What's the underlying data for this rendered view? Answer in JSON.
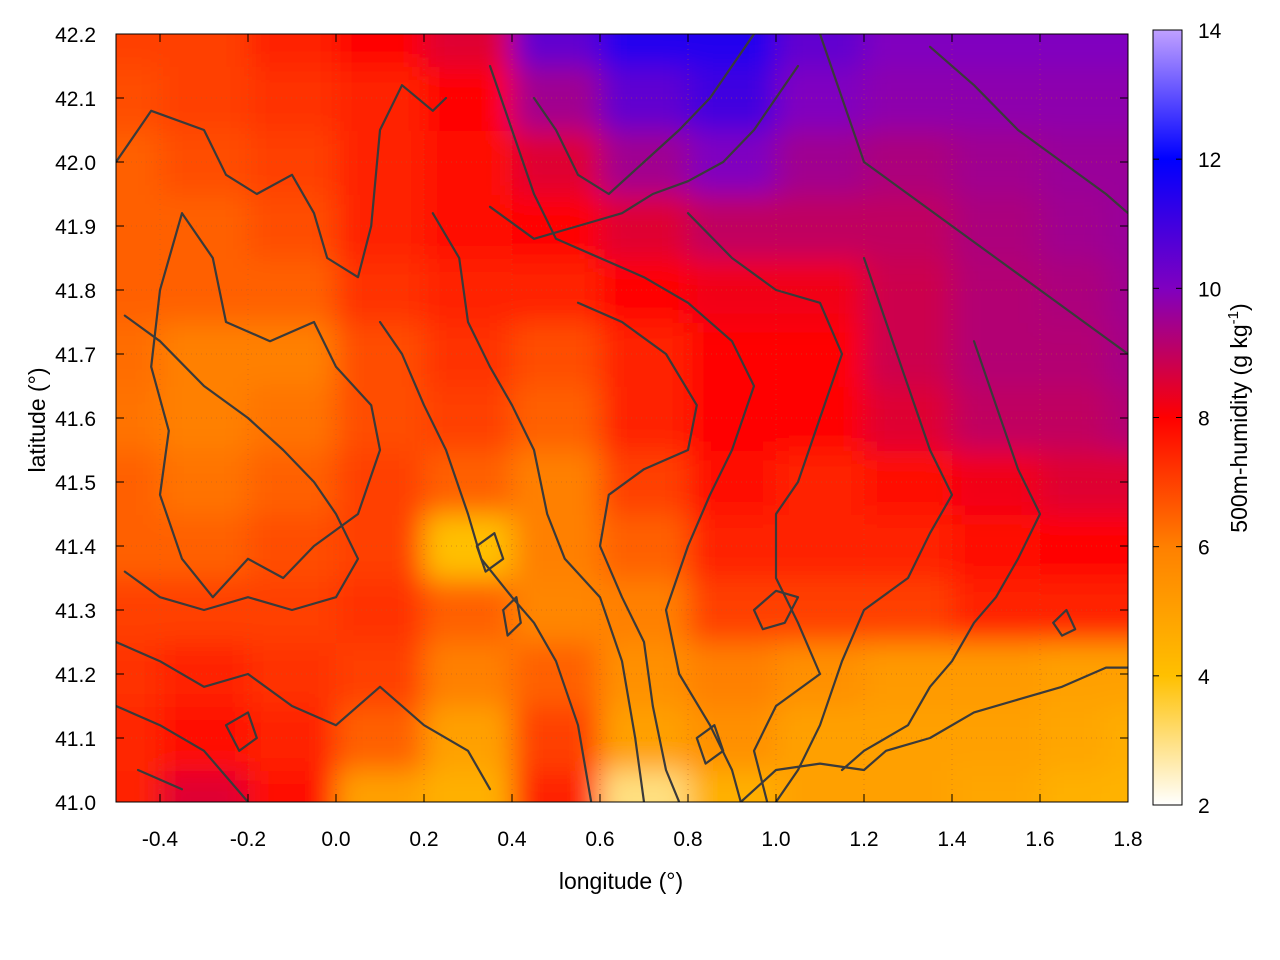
{
  "chart_data": {
    "type": "heatmap",
    "title": "",
    "xlabel": "longitude (°)",
    "ylabel": "latitude (°)",
    "colorbar_label_main": "500m-humidity (g kg",
    "colorbar_label_exp": "-1",
    "colorbar_label_close": ")",
    "xlim": [
      -0.5,
      1.8
    ],
    "ylim": [
      41.0,
      42.2
    ],
    "zlim": [
      2,
      14
    ],
    "x_ticks": [
      -0.4,
      -0.2,
      0.0,
      0.2,
      0.4,
      0.6,
      0.8,
      1.0,
      1.2,
      1.4,
      1.6,
      1.8
    ],
    "x_tick_labels": [
      "-0.4",
      "-0.2",
      "0.0",
      "0.2",
      "0.4",
      "0.6",
      "0.8",
      "1.0",
      "1.2",
      "1.4",
      "1.6",
      "1.8"
    ],
    "y_ticks": [
      41.0,
      41.1,
      41.2,
      41.3,
      41.4,
      41.5,
      41.6,
      41.7,
      41.8,
      41.9,
      42.0,
      42.1,
      42.2
    ],
    "y_tick_labels": [
      "41.0",
      "41.1",
      "41.2",
      "41.3",
      "41.4",
      "41.5",
      "41.6",
      "41.7",
      "41.8",
      "41.9",
      "42.0",
      "42.1",
      "42.2"
    ],
    "z_ticks": [
      2,
      4,
      6,
      8,
      10,
      12,
      14
    ],
    "z_tick_labels": [
      "2",
      "4",
      "6",
      "8",
      "10",
      "12",
      "14"
    ],
    "colormap": [
      "#ffffff",
      "#ffc000",
      "#ff8000",
      "#ff0000",
      "#8000c0",
      "#0000ff",
      "#c0a0ff"
    ],
    "contour_color": "#3a3a3a",
    "grid": true,
    "humidity_grid": {
      "x": [
        -0.5,
        -0.3,
        -0.1,
        0.1,
        0.3,
        0.5,
        0.7,
        0.9,
        1.1,
        1.3,
        1.5,
        1.7,
        1.8
      ],
      "y": [
        41.0,
        41.1,
        41.2,
        41.3,
        41.4,
        41.5,
        41.6,
        41.7,
        41.8,
        41.9,
        42.0,
        42.1,
        42.2
      ],
      "z": [
        [
          7.5,
          8.5,
          7.8,
          5.0,
          4.5,
          7.5,
          3.0,
          4.5,
          5.0,
          5.0,
          4.8,
          4.5,
          4.4
        ],
        [
          7.4,
          7.8,
          7.5,
          6.5,
          5.0,
          7.0,
          5.0,
          5.5,
          5.0,
          5.0,
          5.0,
          4.8,
          4.6
        ],
        [
          7.2,
          7.5,
          7.2,
          7.0,
          6.0,
          6.5,
          5.5,
          6.0,
          5.5,
          5.2,
          5.2,
          5.0,
          5.0
        ],
        [
          7.0,
          7.0,
          7.0,
          7.2,
          6.5,
          5.8,
          6.0,
          7.0,
          7.0,
          7.0,
          7.5,
          7.5,
          7.5
        ],
        [
          6.5,
          6.5,
          6.8,
          7.0,
          4.0,
          6.0,
          6.5,
          7.5,
          7.5,
          7.5,
          7.8,
          8.0,
          8.0
        ],
        [
          6.5,
          6.2,
          6.5,
          7.0,
          6.5,
          6.0,
          7.0,
          7.8,
          7.5,
          7.8,
          8.2,
          8.5,
          8.5
        ],
        [
          6.2,
          6.0,
          6.2,
          6.8,
          7.0,
          6.5,
          7.5,
          8.0,
          8.0,
          8.5,
          9.0,
          9.0,
          9.2
        ],
        [
          6.3,
          6.0,
          6.0,
          6.8,
          7.2,
          6.8,
          7.5,
          8.0,
          8.0,
          8.8,
          9.2,
          9.2,
          9.4
        ],
        [
          6.5,
          6.5,
          6.5,
          7.2,
          7.5,
          7.5,
          8.0,
          8.2,
          8.2,
          8.8,
          9.2,
          9.3,
          9.5
        ],
        [
          6.5,
          6.5,
          6.8,
          7.5,
          7.8,
          8.0,
          8.5,
          9.0,
          9.0,
          9.0,
          9.3,
          9.5,
          9.6
        ],
        [
          6.5,
          6.8,
          7.0,
          7.5,
          7.8,
          8.5,
          9.5,
          10.0,
          9.5,
          9.3,
          9.5,
          9.6,
          9.6
        ],
        [
          6.8,
          7.0,
          7.2,
          7.5,
          8.0,
          9.5,
          10.5,
          11.0,
          10.0,
          9.8,
          9.8,
          9.8,
          9.8
        ],
        [
          7.0,
          7.0,
          7.5,
          8.0,
          8.5,
          10.5,
          11.5,
          11.5,
          10.5,
          10.0,
          10.0,
          10.0,
          10.0
        ]
      ]
    },
    "contour_lines": [
      [
        [
          -0.5,
          42.0
        ],
        [
          -0.42,
          42.08
        ],
        [
          -0.3,
          42.05
        ],
        [
          -0.25,
          41.98
        ],
        [
          -0.18,
          41.95
        ],
        [
          -0.1,
          41.98
        ],
        [
          -0.05,
          41.92
        ],
        [
          -0.02,
          41.85
        ],
        [
          0.05,
          41.82
        ],
        [
          0.08,
          41.9
        ],
        [
          0.1,
          42.05
        ],
        [
          0.15,
          42.12
        ],
        [
          0.22,
          42.08
        ],
        [
          0.25,
          42.1
        ]
      ],
      [
        [
          -0.35,
          41.92
        ],
        [
          -0.28,
          41.85
        ],
        [
          -0.25,
          41.75
        ],
        [
          -0.15,
          41.72
        ],
        [
          -0.05,
          41.75
        ],
        [
          0.0,
          41.68
        ],
        [
          0.08,
          41.62
        ],
        [
          0.1,
          41.55
        ],
        [
          0.05,
          41.45
        ],
        [
          -0.05,
          41.4
        ],
        [
          -0.12,
          41.35
        ],
        [
          -0.2,
          41.38
        ],
        [
          -0.28,
          41.32
        ],
        [
          -0.35,
          41.38
        ],
        [
          -0.4,
          41.48
        ],
        [
          -0.38,
          41.58
        ],
        [
          -0.42,
          41.68
        ],
        [
          -0.4,
          41.8
        ],
        [
          -0.35,
          41.92
        ]
      ],
      [
        [
          -0.48,
          41.76
        ],
        [
          -0.4,
          41.72
        ],
        [
          -0.3,
          41.65
        ],
        [
          -0.2,
          41.6
        ],
        [
          -0.12,
          41.55
        ],
        [
          -0.05,
          41.5
        ],
        [
          0.0,
          41.45
        ],
        [
          0.05,
          41.38
        ],
        [
          0.0,
          41.32
        ],
        [
          -0.1,
          41.3
        ],
        [
          -0.2,
          41.32
        ],
        [
          -0.3,
          41.3
        ],
        [
          -0.4,
          41.32
        ],
        [
          -0.48,
          41.36
        ]
      ],
      [
        [
          -0.5,
          41.25
        ],
        [
          -0.4,
          41.22
        ],
        [
          -0.3,
          41.18
        ],
        [
          -0.2,
          41.2
        ],
        [
          -0.1,
          41.15
        ],
        [
          0.0,
          41.12
        ],
        [
          0.1,
          41.18
        ],
        [
          0.2,
          41.12
        ],
        [
          0.3,
          41.08
        ],
        [
          0.35,
          41.02
        ]
      ],
      [
        [
          -0.5,
          41.15
        ],
        [
          -0.4,
          41.12
        ],
        [
          -0.3,
          41.08
        ],
        [
          -0.2,
          41.0
        ]
      ],
      [
        [
          -0.45,
          41.05
        ],
        [
          -0.35,
          41.02
        ]
      ],
      [
        [
          0.1,
          41.75
        ],
        [
          0.15,
          41.7
        ],
        [
          0.2,
          41.62
        ],
        [
          0.25,
          41.55
        ],
        [
          0.3,
          41.45
        ],
        [
          0.33,
          41.38
        ],
        [
          0.4,
          41.32
        ],
        [
          0.45,
          41.28
        ],
        [
          0.5,
          41.22
        ],
        [
          0.55,
          41.12
        ],
        [
          0.58,
          41.0
        ]
      ],
      [
        [
          0.22,
          41.92
        ],
        [
          0.28,
          41.85
        ],
        [
          0.3,
          41.75
        ],
        [
          0.35,
          41.68
        ],
        [
          0.4,
          41.62
        ],
        [
          0.45,
          41.55
        ],
        [
          0.48,
          41.45
        ],
        [
          0.52,
          41.38
        ],
        [
          0.6,
          41.32
        ],
        [
          0.65,
          41.22
        ],
        [
          0.68,
          41.1
        ],
        [
          0.7,
          41.0
        ]
      ],
      [
        [
          0.35,
          42.15
        ],
        [
          0.4,
          42.05
        ],
        [
          0.45,
          41.95
        ],
        [
          0.5,
          41.88
        ],
        [
          0.6,
          41.85
        ],
        [
          0.7,
          41.82
        ],
        [
          0.8,
          41.78
        ],
        [
          0.9,
          41.72
        ],
        [
          0.95,
          41.65
        ],
        [
          0.9,
          41.55
        ],
        [
          0.85,
          41.48
        ],
        [
          0.8,
          41.4
        ],
        [
          0.75,
          41.3
        ],
        [
          0.78,
          41.2
        ],
        [
          0.85,
          41.12
        ],
        [
          0.9,
          41.05
        ],
        [
          0.92,
          41.0
        ]
      ],
      [
        [
          0.55,
          41.78
        ],
        [
          0.65,
          41.75
        ],
        [
          0.75,
          41.7
        ],
        [
          0.82,
          41.62
        ],
        [
          0.8,
          41.55
        ],
        [
          0.7,
          41.52
        ],
        [
          0.62,
          41.48
        ],
        [
          0.6,
          41.4
        ],
        [
          0.65,
          41.32
        ],
        [
          0.7,
          41.25
        ],
        [
          0.72,
          41.15
        ],
        [
          0.75,
          41.05
        ],
        [
          0.78,
          41.0
        ]
      ],
      [
        [
          0.8,
          41.92
        ],
        [
          0.9,
          41.85
        ],
        [
          1.0,
          41.8
        ],
        [
          1.1,
          41.78
        ],
        [
          1.15,
          41.7
        ],
        [
          1.1,
          41.6
        ],
        [
          1.05,
          41.5
        ],
        [
          1.0,
          41.45
        ],
        [
          1.0,
          41.35
        ],
        [
          1.05,
          41.28
        ],
        [
          1.1,
          41.2
        ],
        [
          1.0,
          41.15
        ],
        [
          0.95,
          41.08
        ],
        [
          0.98,
          41.0
        ]
      ],
      [
        [
          1.2,
          41.85
        ],
        [
          1.25,
          41.75
        ],
        [
          1.3,
          41.65
        ],
        [
          1.35,
          41.55
        ],
        [
          1.4,
          41.48
        ],
        [
          1.35,
          41.42
        ],
        [
          1.3,
          41.35
        ],
        [
          1.2,
          41.3
        ],
        [
          1.15,
          41.22
        ],
        [
          1.1,
          41.12
        ],
        [
          1.05,
          41.05
        ],
        [
          1.0,
          41.0
        ]
      ],
      [
        [
          1.45,
          41.72
        ],
        [
          1.5,
          41.62
        ],
        [
          1.55,
          41.52
        ],
        [
          1.6,
          41.45
        ],
        [
          1.55,
          41.38
        ],
        [
          1.5,
          41.32
        ],
        [
          1.45,
          41.28
        ],
        [
          1.4,
          41.22
        ],
        [
          1.35,
          41.18
        ],
        [
          1.3,
          41.12
        ],
        [
          1.2,
          41.08
        ],
        [
          1.15,
          41.05
        ]
      ],
      [
        [
          0.92,
          41.0
        ],
        [
          1.0,
          41.05
        ],
        [
          1.1,
          41.06
        ],
        [
          1.2,
          41.05
        ],
        [
          1.25,
          41.08
        ],
        [
          1.35,
          41.1
        ],
        [
          1.45,
          41.14
        ],
        [
          1.55,
          41.16
        ],
        [
          1.65,
          41.18
        ],
        [
          1.75,
          41.21
        ],
        [
          1.8,
          41.21
        ]
      ],
      [
        [
          0.35,
          41.93
        ],
        [
          0.45,
          41.88
        ],
        [
          0.55,
          41.9
        ],
        [
          0.65,
          41.92
        ],
        [
          0.72,
          41.95
        ],
        [
          0.8,
          41.97
        ],
        [
          0.88,
          42.0
        ],
        [
          0.95,
          42.05
        ],
        [
          1.0,
          42.1
        ],
        [
          1.05,
          42.15
        ]
      ],
      [
        [
          0.45,
          42.1
        ],
        [
          0.5,
          42.05
        ],
        [
          0.55,
          41.98
        ],
        [
          0.62,
          41.95
        ],
        [
          0.7,
          42.0
        ],
        [
          0.78,
          42.05
        ],
        [
          0.85,
          42.1
        ],
        [
          0.9,
          42.15
        ],
        [
          0.95,
          42.2
        ]
      ],
      [
        [
          1.1,
          42.2
        ],
        [
          1.15,
          42.1
        ],
        [
          1.2,
          42.0
        ],
        [
          1.3,
          41.95
        ],
        [
          1.4,
          41.9
        ],
        [
          1.5,
          41.85
        ],
        [
          1.6,
          41.8
        ],
        [
          1.7,
          41.75
        ],
        [
          1.8,
          41.7
        ]
      ],
      [
        [
          1.35,
          42.18
        ],
        [
          1.45,
          42.12
        ],
        [
          1.55,
          42.05
        ],
        [
          1.65,
          42.0
        ],
        [
          1.75,
          41.95
        ],
        [
          1.8,
          41.92
        ]
      ],
      [
        [
          0.32,
          41.4
        ],
        [
          0.36,
          41.42
        ],
        [
          0.38,
          41.38
        ],
        [
          0.34,
          41.36
        ],
        [
          0.32,
          41.4
        ]
      ],
      [
        [
          0.38,
          41.3
        ],
        [
          0.41,
          41.32
        ],
        [
          0.42,
          41.28
        ],
        [
          0.39,
          41.26
        ],
        [
          0.38,
          41.3
        ]
      ],
      [
        [
          -0.25,
          41.12
        ],
        [
          -0.2,
          41.14
        ],
        [
          -0.18,
          41.1
        ],
        [
          -0.22,
          41.08
        ],
        [
          -0.25,
          41.12
        ]
      ],
      [
        [
          0.82,
          41.1
        ],
        [
          0.86,
          41.12
        ],
        [
          0.88,
          41.08
        ],
        [
          0.84,
          41.06
        ],
        [
          0.82,
          41.1
        ]
      ],
      [
        [
          0.95,
          41.3
        ],
        [
          1.0,
          41.33
        ],
        [
          1.05,
          41.32
        ],
        [
          1.02,
          41.28
        ],
        [
          0.97,
          41.27
        ],
        [
          0.95,
          41.3
        ]
      ],
      [
        [
          1.63,
          41.28
        ],
        [
          1.66,
          41.3
        ],
        [
          1.68,
          41.27
        ],
        [
          1.65,
          41.26
        ],
        [
          1.63,
          41.28
        ]
      ]
    ]
  }
}
